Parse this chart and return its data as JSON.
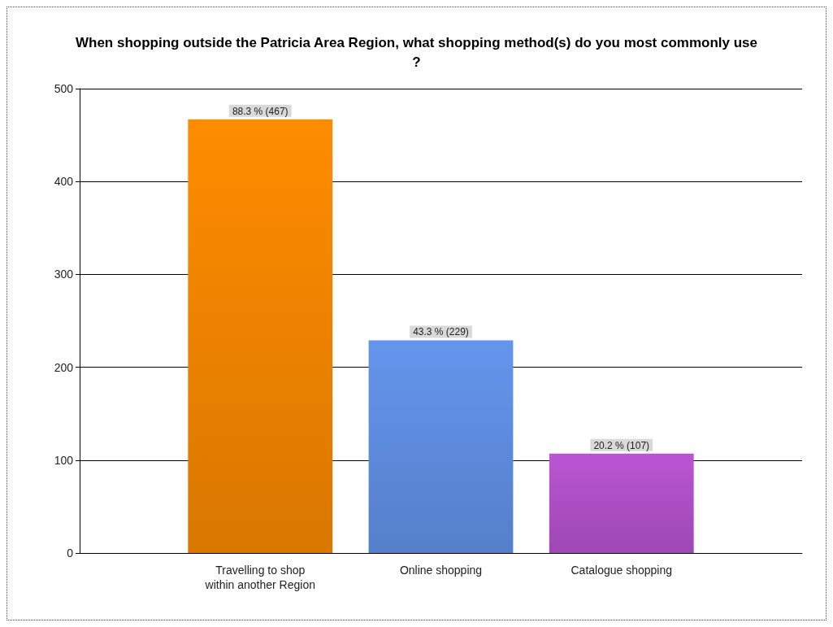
{
  "chart_data": {
    "type": "bar",
    "title": "When shopping outside the Patricia Area Region, what shopping method(s) do you most commonly use?",
    "categories": [
      null,
      "Travelling to shop\nwithin another Region",
      "Online shopping",
      "Catalogue shopping",
      null
    ],
    "values": [
      null,
      467,
      229,
      107,
      null
    ],
    "colors": [
      "#ff8c00",
      "#ff8c00",
      "#6495ed",
      "#ba55d3",
      "#ba55d3"
    ],
    "value_labels": [
      null,
      "88.3 % (467)",
      "43.3 % (229)",
      "20.2 % (107)",
      null
    ],
    "ylim": [
      0,
      500
    ],
    "yticks": [
      0,
      100,
      200,
      300,
      400,
      500
    ],
    "grid": "y"
  }
}
